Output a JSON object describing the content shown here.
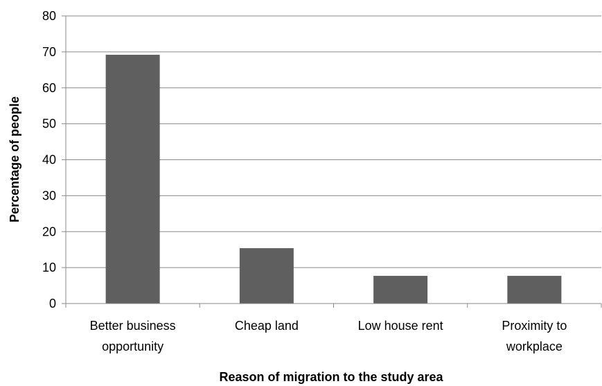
{
  "chart_data": {
    "type": "bar",
    "categories": [
      [
        "Better business",
        "opportunity"
      ],
      [
        "Cheap land"
      ],
      [
        "Low house rent"
      ],
      [
        "Proximity to",
        "workplace"
      ]
    ],
    "values": [
      69.2,
      15.4,
      7.7,
      7.7
    ],
    "xlabel": "Reason of migration to the study area",
    "ylabel": "Percentage of people",
    "ylim": [
      0,
      80
    ],
    "yticks": [
      0,
      10,
      20,
      30,
      40,
      50,
      60,
      70,
      80
    ],
    "grid": true,
    "legend": "none",
    "colors": {
      "bar": "#5f5f5f",
      "grid": "#8a8a8a",
      "axis": "#8a8a8a"
    }
  }
}
